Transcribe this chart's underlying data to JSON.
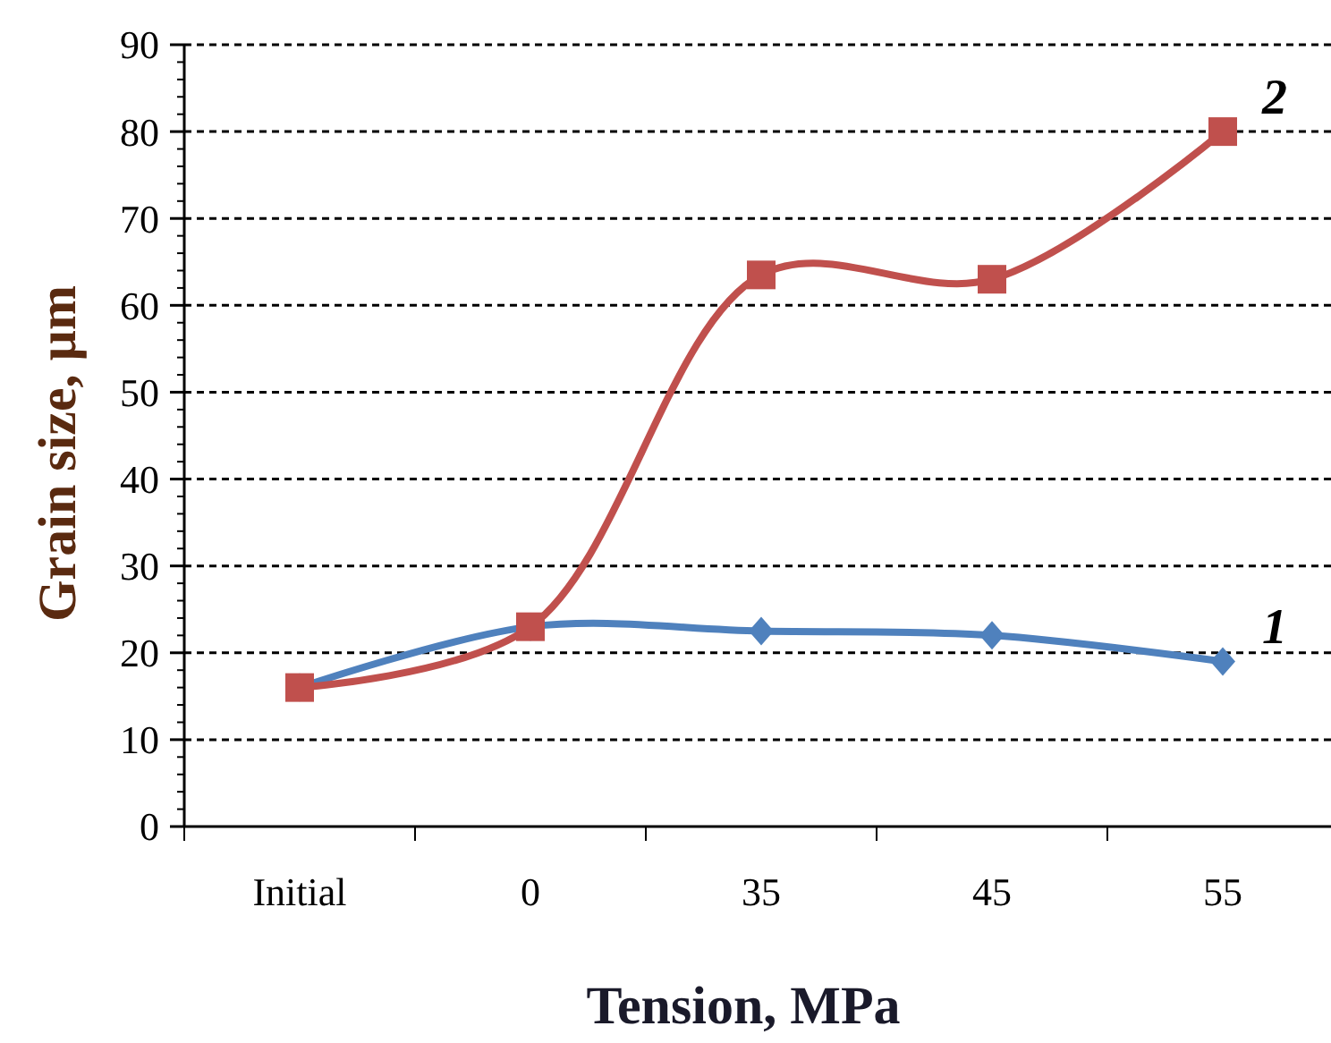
{
  "chart_data": {
    "type": "line",
    "xlabel": "Tension, MPa",
    "ylabel": "Grain size, µm",
    "categories": [
      "Initial",
      "0",
      "35",
      "45",
      "55"
    ],
    "series": [
      {
        "name": "1",
        "color": "#4f81bd",
        "marker": "diamond",
        "values": [
          16,
          23,
          22.5,
          22,
          19
        ]
      },
      {
        "name": "2",
        "color": "#c0504d",
        "marker": "square",
        "values": [
          16,
          23,
          63.5,
          63,
          80
        ]
      }
    ],
    "ylim": [
      0,
      90
    ],
    "yticks": [
      0,
      10,
      20,
      30,
      40,
      50,
      60,
      70,
      80,
      90
    ],
    "grid": "y",
    "line_style": "solid"
  }
}
